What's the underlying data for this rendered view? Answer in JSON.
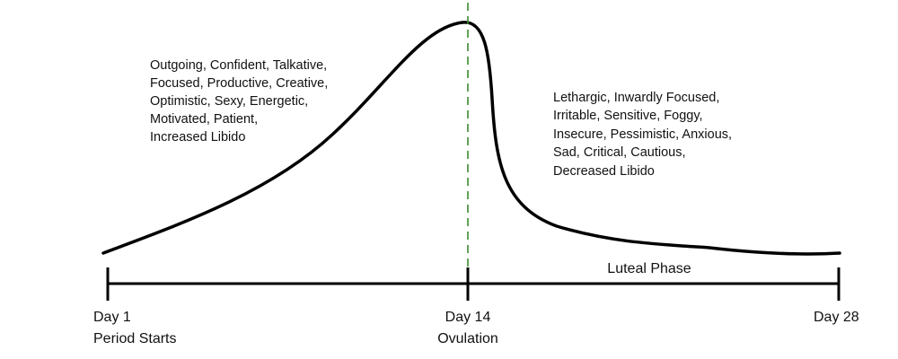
{
  "diagram": {
    "title": "",
    "axis": {
      "start": {
        "day": "Day 1",
        "note": "Period Starts"
      },
      "mid": {
        "day": "Day 14",
        "note": "Ovulation"
      },
      "end": {
        "day": "Day 28",
        "note": ""
      }
    },
    "phase_label": "Luteal Phase",
    "pre_ovulation_traits": [
      "Outgoing, Confident, Talkative,",
      "Focused, Productive, Creative,",
      "Optimistic, Sexy, Energetic,",
      "Motivated, Patient,",
      "Increased Libido"
    ],
    "post_ovulation_traits": [
      "Lethargic, Inwardly Focused,",
      "Irritable, Sensitive, Foggy,",
      "Insecure, Pessimistic, Anxious,",
      "Sad, Critical, Cautious,",
      "Decreased Libido"
    ],
    "colors": {
      "curve": "#000000",
      "axis": "#000000",
      "ovulation_line": "#3a8a2e",
      "text": "#111111"
    }
  }
}
